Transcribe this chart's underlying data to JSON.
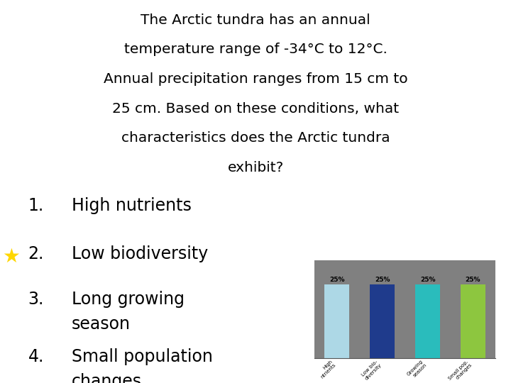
{
  "title_line1": "The Arctic tundra has an annual",
  "title_line2": "temperature range of -34°C to 12°C.",
  "title_line3": "Annual precipitation ranges from 15 cm to",
  "title_line4": "25 cm. Based on these conditions, what",
  "title_line5": "characteristics does the Arctic tundra",
  "title_line6": "exhibit?",
  "item1_num": "1.",
  "item1_text": "High nutrients",
  "item2_num": "2.",
  "item2_text": "Low biodiversity",
  "item3_num": "3.",
  "item3_text_a": "Long growing",
  "item3_text_b": "season",
  "item4_num": "4.",
  "item4_text_a": "Small population",
  "item4_text_b": "changes",
  "star_color": "#FFD700",
  "bar_categories": [
    "High nutrients",
    "Low biodiversity",
    "Growing season",
    "Small population ch."
  ],
  "bar_values": [
    25,
    25,
    25,
    25
  ],
  "bar_colors": [
    "#ADD8E6",
    "#1F3B8C",
    "#2ABCBC",
    "#8DC63F"
  ],
  "background_color": "#FFFFFF",
  "text_color": "#000000",
  "chart_bg": "#808080",
  "title_fontsize": 14.5,
  "item_fontsize": 17,
  "bar_pct_fontsize": 6.5,
  "bar_tick_fontsize": 5
}
